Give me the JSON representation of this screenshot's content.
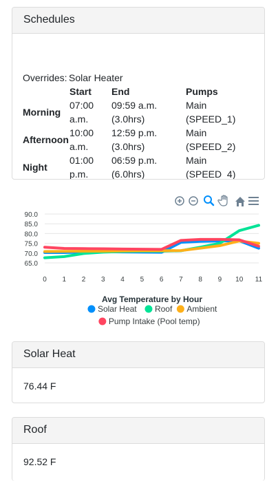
{
  "schedules": {
    "title": "Schedules",
    "overrides_label": "Overrides:",
    "overrides_value": "Solar Heater",
    "columns": [
      "Start",
      "End",
      "Pumps"
    ],
    "rows": [
      {
        "name": "Morning",
        "start": [
          "07:00",
          "a.m."
        ],
        "end": [
          "09:59 a.m.",
          "(3.0hrs)"
        ],
        "pumps": [
          "Main",
          "(SPEED_1)"
        ]
      },
      {
        "name": "Afternoon",
        "start": [
          "10:00",
          "a.m."
        ],
        "end": [
          "12:59 p.m.",
          "(3.0hrs)"
        ],
        "pumps": [
          "Main",
          "(SPEED_2)"
        ]
      },
      {
        "name": "Night",
        "start": [
          "01:00",
          "p.m."
        ],
        "end": [
          "06:59 p.m.",
          "(6.0hrs)"
        ],
        "pumps": [
          "Main",
          "(SPEED_4)"
        ]
      }
    ]
  },
  "toolbar": {
    "icons": [
      "zoom-in-icon",
      "zoom-out-icon",
      "zoom-select-icon",
      "pan-hand-icon",
      "home-icon",
      "menu-icon"
    ]
  },
  "chart_data": {
    "type": "line",
    "title": "Avg Temperature by Hour",
    "x": [
      0,
      1,
      2,
      3,
      4,
      5,
      6,
      7,
      8,
      9,
      10,
      11
    ],
    "ylim": [
      65,
      90
    ],
    "yticks": [
      "90.0",
      "85.0",
      "80.0",
      "75.0",
      "70.0",
      "65.0"
    ],
    "yticks_values": [
      90,
      85,
      80,
      75,
      70,
      65
    ],
    "xticks": [
      "0",
      "1",
      "2",
      "3",
      "4",
      "5",
      "6",
      "7",
      "8",
      "9",
      "10",
      "11"
    ],
    "legend_position": "bottom",
    "series": [
      {
        "name": "Solar Heat",
        "color": "#008ffb",
        "values": [
          70.3,
          70.3,
          70.5,
          70.7,
          70.6,
          70.5,
          70.4,
          75.5,
          76.0,
          76.2,
          76.3,
          72.5
        ]
      },
      {
        "name": "Roof",
        "color": "#00e396",
        "values": [
          67.6,
          68.2,
          69.8,
          70.5,
          70.8,
          71.0,
          71.0,
          71.2,
          73.0,
          75.0,
          81.5,
          84.2
        ]
      },
      {
        "name": "Ambient",
        "color": "#feb019",
        "values": [
          70.8,
          70.9,
          71.0,
          71.0,
          71.1,
          71.2,
          71.2,
          71.3,
          72.5,
          73.8,
          76.2,
          75.0
        ]
      },
      {
        "name": "Pump Intake (Pool temp)",
        "color": "#ff4560",
        "values": [
          73.0,
          72.4,
          72.3,
          72.2,
          72.1,
          72.0,
          71.9,
          76.5,
          77.0,
          77.0,
          76.8,
          73.5
        ]
      }
    ]
  },
  "solar_heat": {
    "title": "Solar Heat",
    "value": "76.44 F"
  },
  "roof": {
    "title": "Roof",
    "value": "92.52 F"
  }
}
